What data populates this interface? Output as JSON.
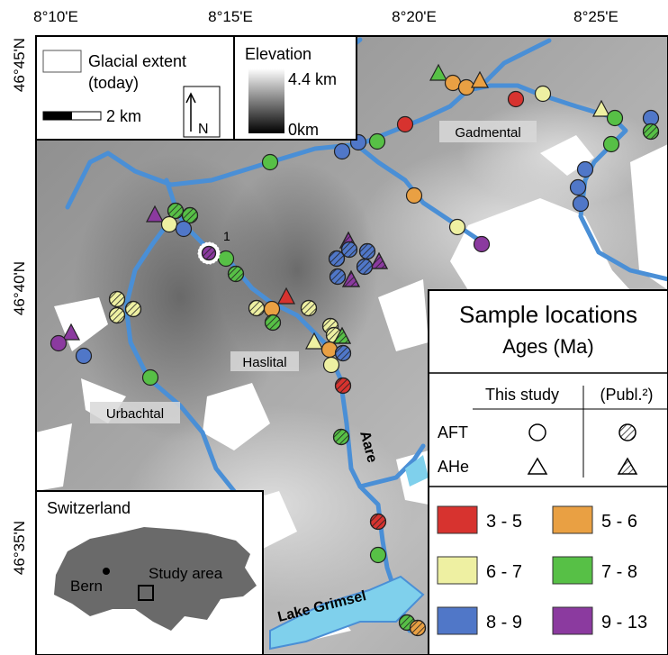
{
  "axes": {
    "top": [
      "8°10'E",
      "8°15'E",
      "8°20'E",
      "8°25'E"
    ],
    "left": [
      "46°45'N",
      "46°40'N",
      "46°35'N"
    ]
  },
  "legend": {
    "glacial_extent": [
      "Glacial extent",
      "(today)"
    ],
    "scale": "2 km",
    "north": "N",
    "elevation": {
      "title": "Elevation",
      "max": "4.4 km",
      "min": "0km"
    }
  },
  "places": {
    "gadmental": "Gadmental",
    "haslital": "Haslital",
    "urbachtal": "Urbachtal",
    "aare": "Aare",
    "lake_grimsel": "Lake Grimsel",
    "site_1": "1"
  },
  "inset": {
    "title": "Switzerland",
    "bern": "Bern",
    "study_area": "Study area"
  },
  "sample_legend": {
    "title": "Sample locations",
    "subtitle": "Ages (Ma)",
    "columns": [
      "This study",
      "(Publ.²)"
    ],
    "rows": [
      "AFT",
      "AHe"
    ],
    "age_classes": [
      "3 - 5",
      "5 - 6",
      "6 - 7",
      "7 - 8",
      "8 - 9",
      "9 - 13"
    ]
  }
}
